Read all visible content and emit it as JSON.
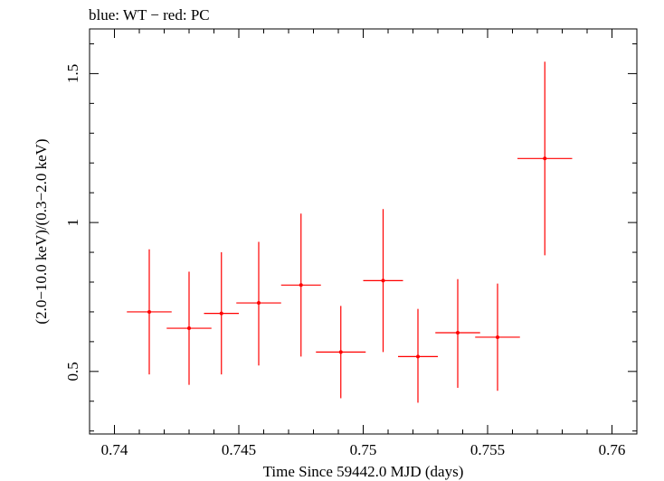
{
  "chart_data": {
    "type": "scatter",
    "title": "blue: WT − red: PC",
    "xlabel": "Time Since 59442.0 MJD (days)",
    "ylabel": "(2.0−10.0 keV)/(0.3−2.0 keV)",
    "xlim": [
      0.739,
      0.761
    ],
    "ylim": [
      0.29,
      1.65
    ],
    "x_ticks": [
      0.74,
      0.745,
      0.75,
      0.755,
      0.76
    ],
    "x_tick_labels": [
      "0.74",
      "0.745",
      "0.75",
      "0.755",
      "0.76"
    ],
    "y_ticks": [
      0.5,
      1,
      1.5
    ],
    "y_tick_labels": [
      "0.5",
      "1",
      "1.5"
    ],
    "grid": false,
    "series": [
      {
        "color": "#ff0000",
        "points": [
          {
            "x": 0.7414,
            "xerr": 0.0009,
            "y": 0.7,
            "ylo": 0.49,
            "yhi": 0.91
          },
          {
            "x": 0.743,
            "xerr": 0.0009,
            "y": 0.645,
            "ylo": 0.455,
            "yhi": 0.835
          },
          {
            "x": 0.7443,
            "xerr": 0.0007,
            "y": 0.695,
            "ylo": 0.49,
            "yhi": 0.9
          },
          {
            "x": 0.7458,
            "xerr": 0.0009,
            "y": 0.73,
            "ylo": 0.52,
            "yhi": 0.935
          },
          {
            "x": 0.7475,
            "xerr": 0.0008,
            "y": 0.79,
            "ylo": 0.55,
            "yhi": 1.03
          },
          {
            "x": 0.7491,
            "xerr": 0.001,
            "y": 0.565,
            "ylo": 0.41,
            "yhi": 0.72
          },
          {
            "x": 0.7508,
            "xerr": 0.0008,
            "y": 0.805,
            "ylo": 0.565,
            "yhi": 1.045
          },
          {
            "x": 0.7522,
            "xerr": 0.0008,
            "y": 0.55,
            "ylo": 0.395,
            "yhi": 0.71
          },
          {
            "x": 0.7538,
            "xerr": 0.0009,
            "y": 0.63,
            "ylo": 0.445,
            "yhi": 0.81
          },
          {
            "x": 0.7554,
            "xerr": 0.0009,
            "y": 0.615,
            "ylo": 0.435,
            "yhi": 0.795
          },
          {
            "x": 0.7573,
            "xerr": 0.0011,
            "y": 1.215,
            "ylo": 0.89,
            "yhi": 1.54
          }
        ]
      }
    ]
  }
}
